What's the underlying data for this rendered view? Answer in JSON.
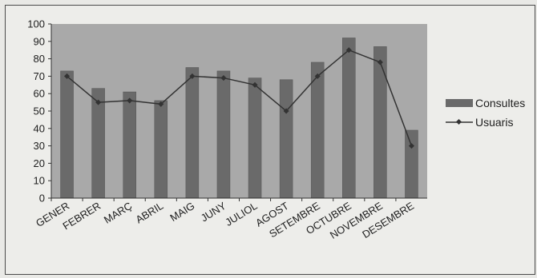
{
  "chart_data": {
    "type": "bar",
    "categories": [
      "GENER",
      "FEBRER",
      "MARÇ",
      "ABRIL",
      "MAIG",
      "JUNY",
      "JULIOL",
      "AGOST",
      "SETEMBRE",
      "OCTUBRE",
      "NOVEMBRE",
      "DESEMBRE"
    ],
    "series": [
      {
        "name": "Consultes",
        "type": "bar",
        "values": [
          73,
          63,
          61,
          56,
          75,
          73,
          69,
          68,
          78,
          92,
          87,
          39
        ]
      },
      {
        "name": "Usuaris",
        "type": "line",
        "values": [
          70,
          55,
          56,
          54,
          70,
          69,
          65,
          50,
          70,
          85,
          78,
          30
        ]
      }
    ],
    "ylim": [
      0,
      100
    ],
    "yticks": [
      0,
      10,
      20,
      30,
      40,
      50,
      60,
      70,
      80,
      90,
      100
    ],
    "grid": false,
    "legend": "right",
    "colors": {
      "bar": "#6a6a6a",
      "plot_bg": "#a9a9a9",
      "line": "#333333"
    }
  }
}
